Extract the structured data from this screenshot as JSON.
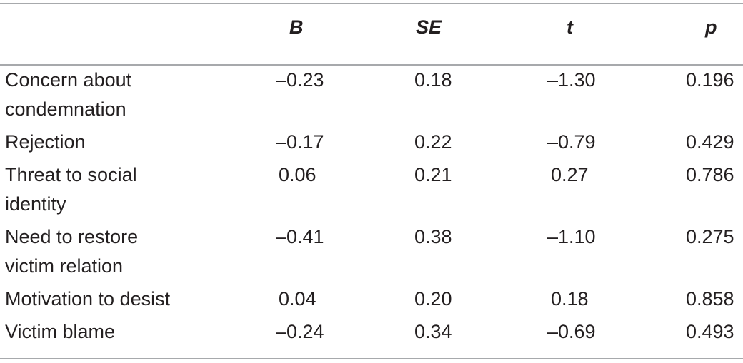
{
  "table": {
    "headers": {
      "label": "",
      "b": "B",
      "se": "SE",
      "t": "t",
      "p": "p"
    },
    "rows": [
      {
        "label_line1": "Concern about",
        "label_line2": "condemnation",
        "b": "–0.23",
        "se": "0.18",
        "t": "–1.30",
        "p": "0.196"
      },
      {
        "label_line1": "Rejection",
        "label_line2": "",
        "b": "–0.17",
        "se": "0.22",
        "t": "–0.79",
        "p": "0.429"
      },
      {
        "label_line1": "Threat to social",
        "label_line2": "identity",
        "b": "0.06",
        "se": "0.21",
        "t": "0.27",
        "p": "0.786"
      },
      {
        "label_line1": "Need to restore",
        "label_line2": "victim relation",
        "b": "–0.41",
        "se": "0.38",
        "t": "–1.10",
        "p": "0.275"
      },
      {
        "label_line1": "Motivation to desist",
        "label_line2": "",
        "b": "0.04",
        "se": "0.20",
        "t": "0.18",
        "p": "0.858"
      },
      {
        "label_line1": "Victim blame",
        "label_line2": "",
        "b": "–0.24",
        "se": "0.34",
        "t": "–0.69",
        "p": "0.493"
      }
    ]
  }
}
